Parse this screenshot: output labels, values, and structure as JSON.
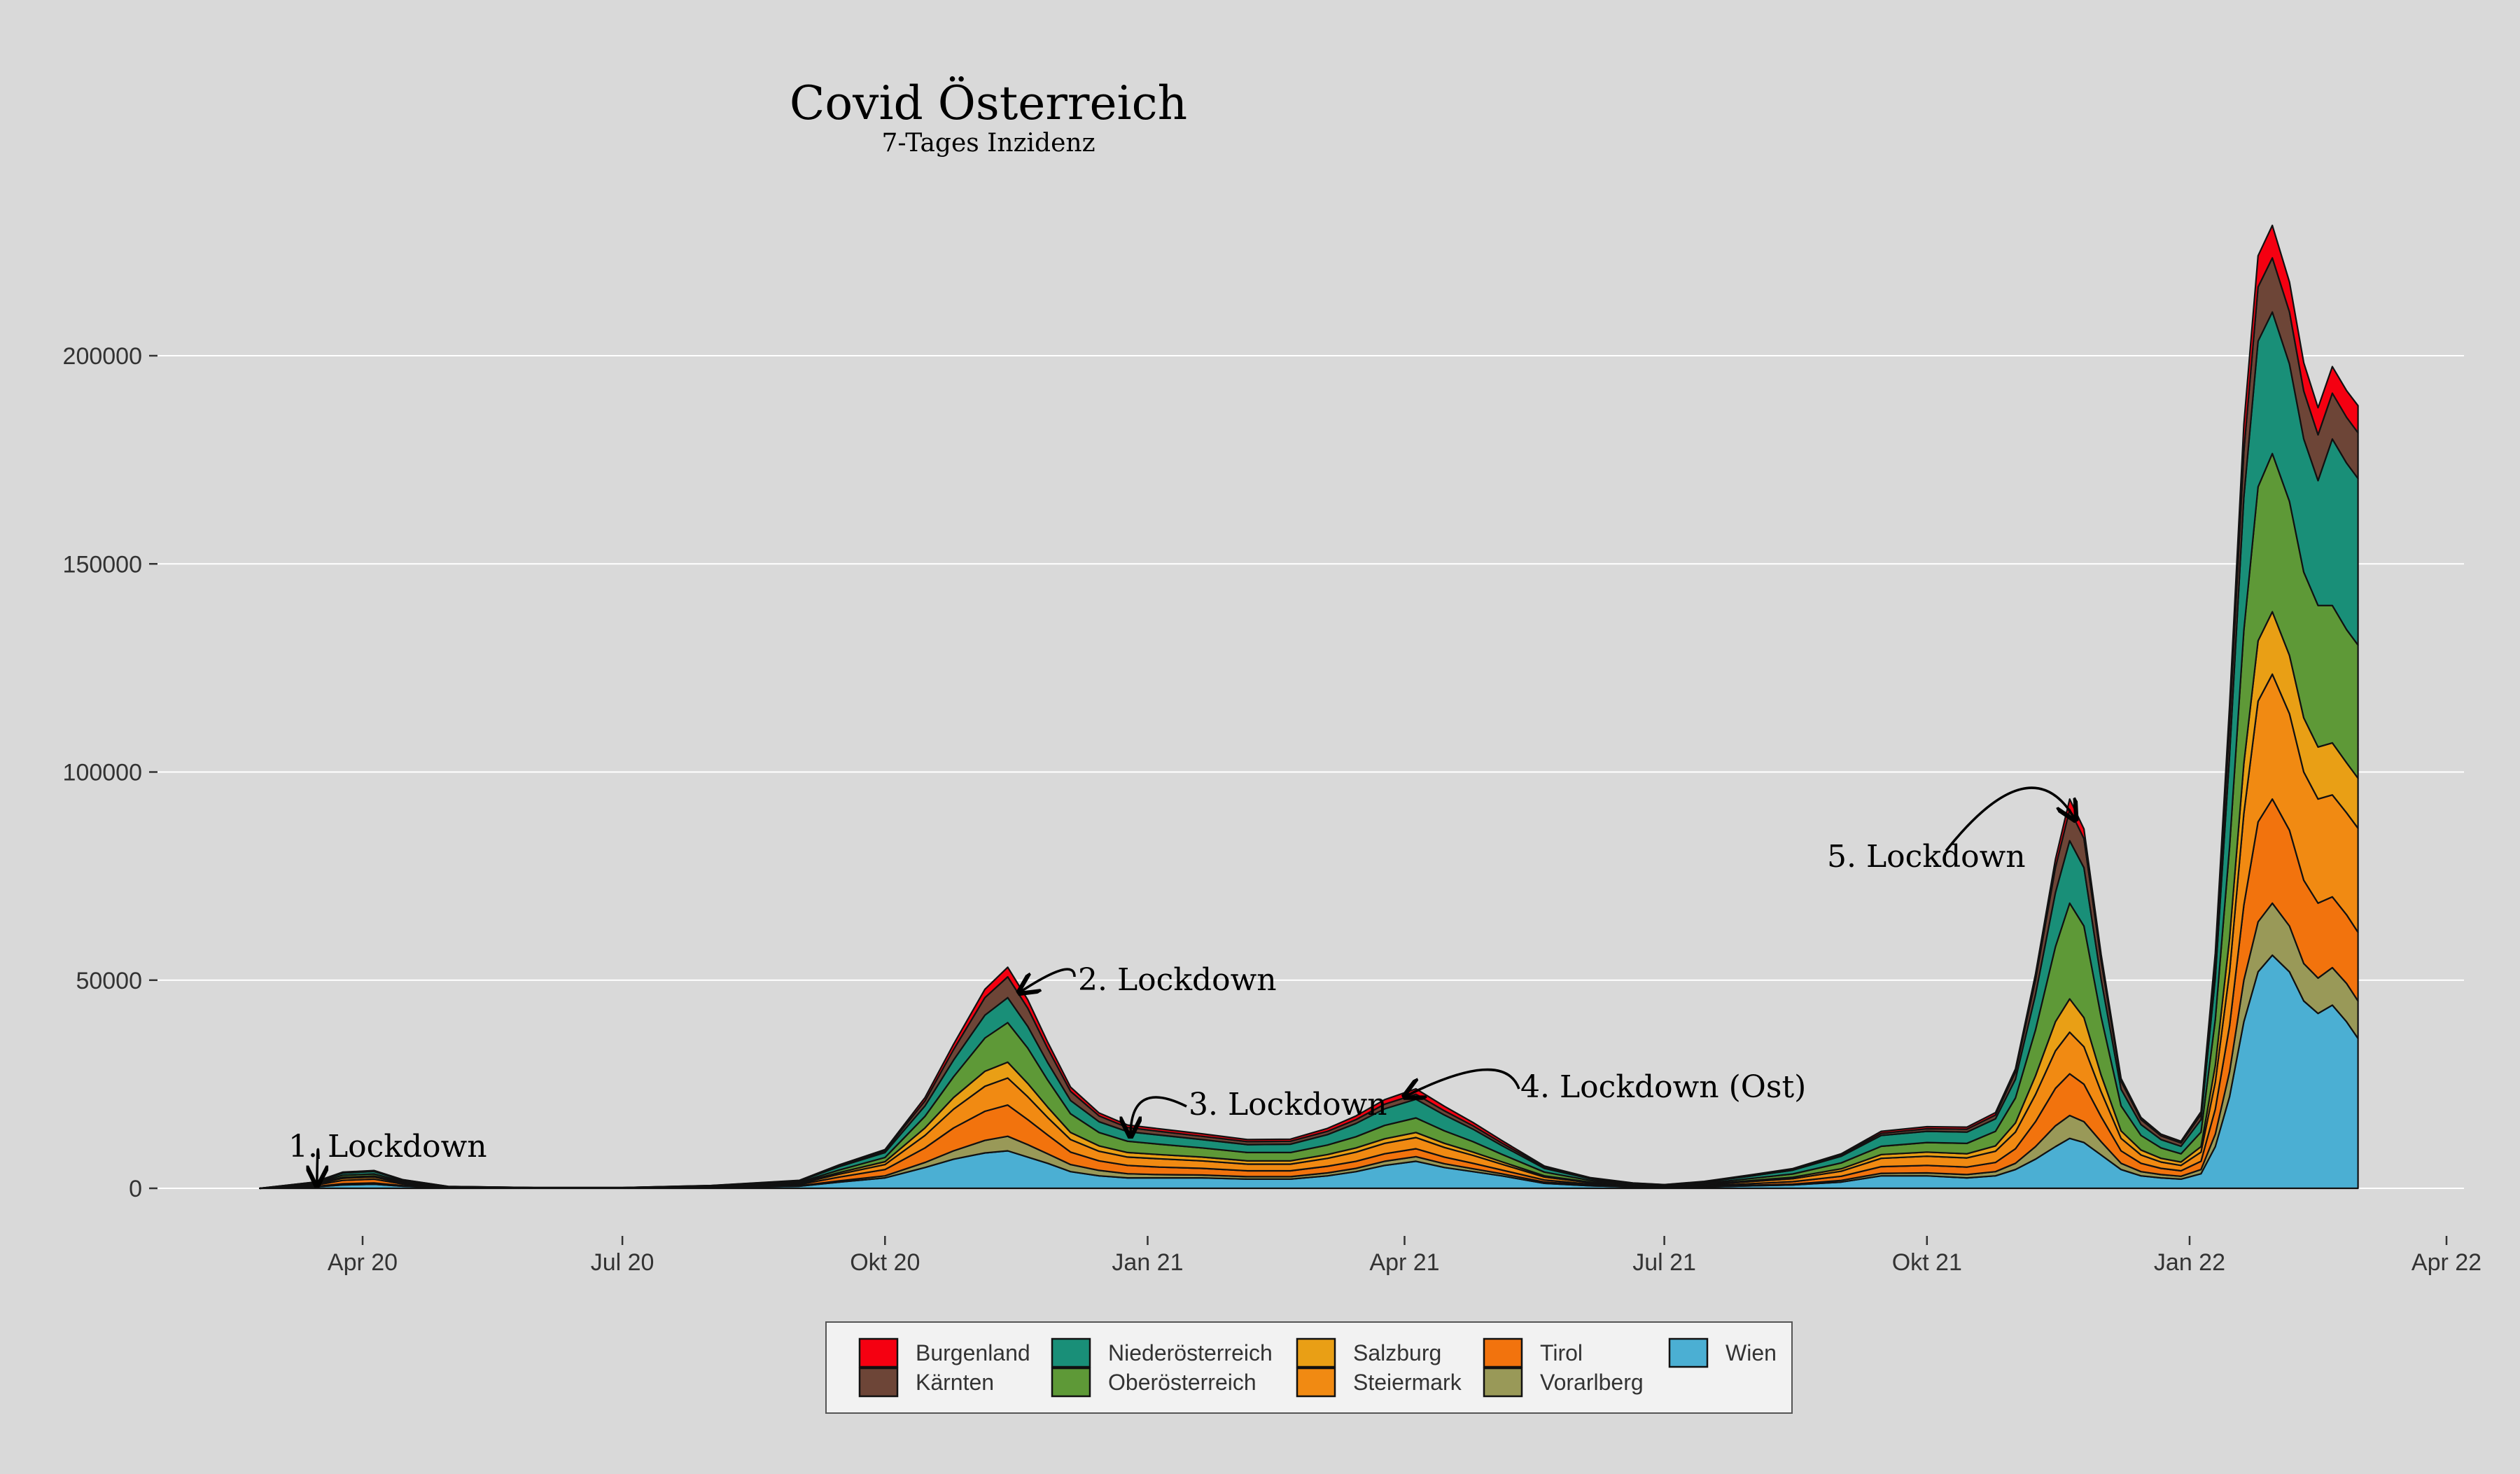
{
  "title": "Covid Österreich",
  "subtitle": "7-Tages Inzidenz",
  "chart_data": {
    "type": "area",
    "stacked": true,
    "background": "#d9d9d9",
    "grid": "horizontal",
    "legend_position": "bottom",
    "xlim": [
      "2020-01-01",
      "2022-04-01"
    ],
    "ylim": [
      0,
      240000
    ],
    "x_ticks": [
      {
        "date": "2020-04-01",
        "label": "Apr 20"
      },
      {
        "date": "2020-07-01",
        "label": "Jul 20"
      },
      {
        "date": "2020-10-01",
        "label": "Okt 20"
      },
      {
        "date": "2021-01-01",
        "label": "Jan 21"
      },
      {
        "date": "2021-04-01",
        "label": "Apr 21"
      },
      {
        "date": "2021-07-01",
        "label": "Jul 21"
      },
      {
        "date": "2021-10-01",
        "label": "Okt 21"
      },
      {
        "date": "2022-01-01",
        "label": "Jan 22"
      },
      {
        "date": "2022-04-01",
        "label": "Apr 22"
      }
    ],
    "y_ticks": [
      {
        "value": 0,
        "label": "0"
      },
      {
        "value": 50000,
        "label": "50000"
      },
      {
        "value": 100000,
        "label": "100000"
      },
      {
        "value": 150000,
        "label": "150000"
      },
      {
        "value": 200000,
        "label": "200000"
      }
    ],
    "x": [
      "2020-02-25",
      "2020-03-15",
      "2020-03-25",
      "2020-04-05",
      "2020-04-15",
      "2020-05-01",
      "2020-06-01",
      "2020-07-01",
      "2020-08-01",
      "2020-09-01",
      "2020-09-15",
      "2020-10-01",
      "2020-10-15",
      "2020-10-25",
      "2020-11-05",
      "2020-11-13",
      "2020-11-20",
      "2020-11-27",
      "2020-12-05",
      "2020-12-15",
      "2020-12-25",
      "2021-01-05",
      "2021-01-20",
      "2021-02-05",
      "2021-02-20",
      "2021-03-05",
      "2021-03-15",
      "2021-03-25",
      "2021-04-05",
      "2021-04-15",
      "2021-04-25",
      "2021-05-05",
      "2021-05-20",
      "2021-06-05",
      "2021-06-20",
      "2021-07-01",
      "2021-07-15",
      "2021-08-01",
      "2021-08-15",
      "2021-09-01",
      "2021-09-15",
      "2021-10-01",
      "2021-10-15",
      "2021-10-25",
      "2021-11-01",
      "2021-11-08",
      "2021-11-15",
      "2021-11-20",
      "2021-11-25",
      "2021-12-01",
      "2021-12-08",
      "2021-12-15",
      "2021-12-22",
      "2021-12-29",
      "2022-01-05",
      "2022-01-10",
      "2022-01-15",
      "2022-01-20",
      "2022-01-25",
      "2022-01-30",
      "2022-02-05",
      "2022-02-10",
      "2022-02-15",
      "2022-02-20",
      "2022-02-25",
      "2022-03-01"
    ],
    "series": [
      {
        "name": "Wien",
        "color": "#4bafd3",
        "values": [
          0,
          300,
          800,
          1000,
          500,
          100,
          50,
          50,
          150,
          500,
          1500,
          2500,
          5000,
          7000,
          8500,
          9000,
          7500,
          6000,
          4000,
          3000,
          2500,
          2500,
          2500,
          2200,
          2200,
          3000,
          4000,
          5500,
          6500,
          5000,
          4000,
          3000,
          1200,
          600,
          300,
          200,
          300,
          600,
          800,
          1500,
          3000,
          3000,
          2500,
          3000,
          4500,
          7000,
          10000,
          12000,
          11000,
          8000,
          4500,
          3000,
          2500,
          2200,
          3500,
          10000,
          22000,
          40000,
          52000,
          56000,
          52000,
          45000,
          42000,
          44000,
          40000,
          36000
        ]
      },
      {
        "name": "Vorarlberg",
        "color": "#999958",
        "values": [
          0,
          100,
          300,
          300,
          150,
          30,
          10,
          10,
          30,
          100,
          300,
          500,
          1200,
          2000,
          3000,
          3500,
          3000,
          2300,
          1700,
          1300,
          1000,
          800,
          700,
          600,
          600,
          700,
          800,
          1000,
          1100,
          900,
          700,
          500,
          300,
          150,
          80,
          50,
          80,
          150,
          200,
          400,
          600,
          700,
          800,
          1000,
          1500,
          3000,
          5000,
          5500,
          5000,
          3200,
          1500,
          1000,
          800,
          700,
          1000,
          3000,
          6000,
          10000,
          12000,
          12500,
          11000,
          9000,
          8500,
          9000,
          9200,
          9000
        ]
      },
      {
        "name": "Tirol",
        "color": "#f2730d",
        "values": [
          0,
          300,
          800,
          900,
          400,
          100,
          30,
          30,
          100,
          300,
          900,
          1500,
          3500,
          5500,
          7000,
          7500,
          6000,
          4500,
          3000,
          2300,
          2000,
          1800,
          1600,
          1400,
          1400,
          1600,
          1700,
          1800,
          1900,
          1600,
          1300,
          900,
          500,
          250,
          120,
          80,
          200,
          400,
          600,
          1000,
          1600,
          1800,
          1800,
          2200,
          3500,
          6000,
          9000,
          10000,
          9000,
          6000,
          3000,
          2000,
          1500,
          1300,
          2000,
          6000,
          11000,
          18000,
          24000,
          25000,
          23000,
          20000,
          18000,
          17000,
          16500,
          16500
        ]
      },
      {
        "name": "Steiermark",
        "color": "#f18a12",
        "values": [
          0,
          200,
          500,
          500,
          250,
          50,
          20,
          20,
          100,
          250,
          700,
          1200,
          3000,
          4500,
          6000,
          6500,
          5500,
          4200,
          3000,
          2300,
          2000,
          2000,
          1800,
          1600,
          1600,
          1900,
          2200,
          2500,
          2700,
          2300,
          1900,
          1400,
          700,
          350,
          180,
          120,
          250,
          500,
          700,
          1200,
          2000,
          2200,
          2200,
          2700,
          4000,
          6500,
          9000,
          10000,
          9000,
          6000,
          3000,
          2000,
          1500,
          1300,
          2200,
          6500,
          13000,
          22000,
          29000,
          30000,
          28000,
          26000,
          25000,
          24500,
          24500,
          25000
        ]
      },
      {
        "name": "Salzburg",
        "color": "#e99f15",
        "values": [
          0,
          100,
          250,
          250,
          120,
          30,
          10,
          10,
          40,
          120,
          400,
          700,
          1800,
          2800,
          3600,
          3800,
          3200,
          2500,
          1700,
          1300,
          1100,
          1000,
          900,
          800,
          800,
          900,
          1000,
          1100,
          1200,
          1000,
          800,
          600,
          300,
          150,
          80,
          50,
          120,
          250,
          350,
          600,
          900,
          1000,
          1000,
          1300,
          2200,
          4500,
          7000,
          8000,
          7000,
          4000,
          1800,
          1200,
          900,
          800,
          1300,
          4000,
          8000,
          12000,
          14500,
          15000,
          14000,
          13000,
          12500,
          12500,
          12000,
          12000
        ]
      },
      {
        "name": "Oberösterreich",
        "color": "#5e9937",
        "values": [
          0,
          200,
          500,
          500,
          250,
          50,
          20,
          20,
          100,
          200,
          600,
          1000,
          2800,
          5000,
          8000,
          9500,
          8500,
          6500,
          4500,
          3200,
          2700,
          2500,
          2200,
          2000,
          2000,
          2300,
          2700,
          3200,
          3500,
          3000,
          2500,
          1800,
          900,
          400,
          200,
          150,
          250,
          500,
          800,
          1400,
          2000,
          2300,
          2500,
          3500,
          6000,
          11000,
          18000,
          23000,
          22000,
          14000,
          6000,
          3500,
          2500,
          2000,
          3500,
          11000,
          22000,
          32000,
          37000,
          38000,
          37000,
          35000,
          34000,
          33000,
          32000,
          32000
        ]
      },
      {
        "name": "Niederösterreich",
        "color": "#198f78",
        "values": [
          0,
          200,
          500,
          600,
          300,
          60,
          20,
          20,
          100,
          300,
          800,
          1200,
          2500,
          4000,
          5500,
          6000,
          5200,
          4200,
          3200,
          2600,
          2300,
          2200,
          2000,
          1900,
          2000,
          2500,
          3200,
          4000,
          4500,
          3800,
          3000,
          2100,
          900,
          400,
          200,
          150,
          300,
          600,
          900,
          1600,
          2600,
          2700,
          2700,
          3000,
          4500,
          8500,
          13000,
          15000,
          14000,
          9000,
          4000,
          2600,
          2000,
          1800,
          3000,
          10000,
          22000,
          32000,
          35000,
          34000,
          33000,
          32000,
          30000,
          40000,
          40000,
          40000
        ]
      },
      {
        "name": "Kärnten",
        "color": "#6d4537",
        "values": [
          0,
          50,
          150,
          150,
          80,
          20,
          10,
          10,
          30,
          80,
          250,
          400,
          1200,
          2500,
          4200,
          5000,
          4400,
          3400,
          2200,
          1400,
          1000,
          900,
          800,
          700,
          700,
          800,
          900,
          1100,
          1200,
          1000,
          800,
          600,
          300,
          150,
          80,
          50,
          80,
          150,
          200,
          300,
          500,
          600,
          700,
          900,
          1700,
          3500,
          6000,
          7500,
          7000,
          4500,
          1900,
          1200,
          900,
          800,
          1200,
          3800,
          7500,
          11000,
          13000,
          13000,
          12500,
          11500,
          11000,
          11000,
          11000,
          11000
        ]
      },
      {
        "name": "Burgenland",
        "color": "#f50011",
        "values": [
          0,
          30,
          80,
          80,
          40,
          10,
          5,
          5,
          20,
          60,
          200,
          300,
          800,
          1300,
          2000,
          2300,
          2000,
          1500,
          1000,
          700,
          600,
          600,
          600,
          500,
          500,
          700,
          900,
          1100,
          1300,
          1100,
          800,
          600,
          250,
          120,
          60,
          40,
          80,
          150,
          200,
          300,
          500,
          500,
          500,
          600,
          800,
          1400,
          2000,
          2500,
          2300,
          1500,
          700,
          500,
          400,
          400,
          700,
          2200,
          4500,
          6500,
          7500,
          7800,
          7200,
          6800,
          6500,
          6400,
          6400,
          6500
        ]
      }
    ],
    "annotations": [
      {
        "text": "1. Lockdown",
        "date": "2020-03-16",
        "value": 700
      },
      {
        "text": "2. Lockdown",
        "date": "2020-11-17",
        "value": 47000
      },
      {
        "text": "3. Lockdown",
        "date": "2020-12-26",
        "value": 12500
      },
      {
        "text": "4. Lockdown (Ost)",
        "date": "2021-04-01",
        "value": 22000
      },
      {
        "text": "5. Lockdown",
        "date": "2021-11-22",
        "value": 88500
      }
    ]
  }
}
